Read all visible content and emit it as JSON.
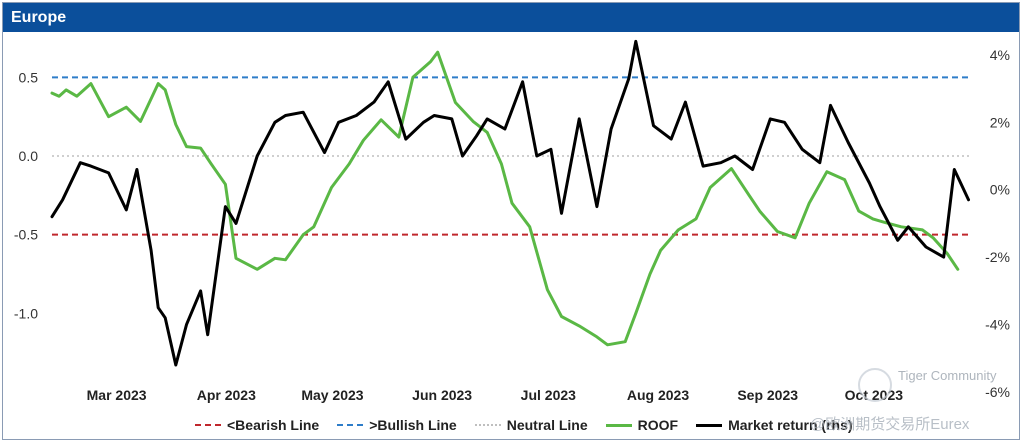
{
  "panel": {
    "title": "Europe"
  },
  "colors": {
    "header": "#0b4f9b",
    "bearish": "#c0272d",
    "bullish": "#2e7dc9",
    "neutral": "#bfbfbf",
    "roof": "#5ab845",
    "market": "#000000"
  },
  "watermark": {
    "line1": "Tiger Community",
    "line2": "@欧洲期货交易所Eurex"
  },
  "chart_data": {
    "type": "line",
    "title": "Europe",
    "x_labels": [
      "Mar 2023",
      "Apr 2023",
      "May 2023",
      "Jun 2023",
      "Jul 2023",
      "Aug 2023",
      "Sep 2023",
      "Oct 2023"
    ],
    "x_range": [
      "2023-02-13",
      "2023-10-31"
    ],
    "left_axis": {
      "ylim": [
        -1.5,
        0.75
      ],
      "ticks": [
        0.5,
        0.0,
        -0.5,
        -1.0
      ],
      "tick_labels": [
        "0.5",
        "0.0",
        "-0.5",
        "-1.0"
      ]
    },
    "right_axis": {
      "ylim": [
        -6,
        4.5
      ],
      "ticks": [
        4,
        2,
        0,
        -2,
        -4,
        -6
      ],
      "tick_labels": [
        "4%",
        "2%",
        "0%",
        "-2%",
        "-4%",
        "-6%"
      ],
      "unit": "%"
    },
    "reference_lines": [
      {
        "name": "<Bearish Line",
        "y": -0.5,
        "style": "dashed",
        "color": "#c0272d"
      },
      {
        "name": ">Bullish Line",
        "y": 0.5,
        "style": "dashed",
        "color": "#2e7dc9"
      },
      {
        "name": "Neutral Line",
        "y": 0.0,
        "style": "dotted",
        "color": "#bfbfbf"
      }
    ],
    "series": [
      {
        "name": "ROOF",
        "axis": "left",
        "color": "#5ab845",
        "x": [
          "2023-02-13",
          "2023-02-15",
          "2023-02-17",
          "2023-02-20",
          "2023-02-24",
          "2023-03-01",
          "2023-03-06",
          "2023-03-10",
          "2023-03-15",
          "2023-03-17",
          "2023-03-20",
          "2023-03-23",
          "2023-03-27",
          "2023-03-30",
          "2023-04-03",
          "2023-04-06",
          "2023-04-12",
          "2023-04-17",
          "2023-04-20",
          "2023-04-25",
          "2023-04-28",
          "2023-05-03",
          "2023-05-08",
          "2023-05-12",
          "2023-05-17",
          "2023-05-22",
          "2023-05-26",
          "2023-05-31",
          "2023-06-02",
          "2023-06-07",
          "2023-06-12",
          "2023-06-16",
          "2023-06-20",
          "2023-06-23",
          "2023-06-28",
          "2023-07-03",
          "2023-07-07",
          "2023-07-12",
          "2023-07-17",
          "2023-07-20",
          "2023-07-25",
          "2023-07-28",
          "2023-08-01",
          "2023-08-04",
          "2023-08-09",
          "2023-08-14",
          "2023-08-18",
          "2023-08-24",
          "2023-08-29",
          "2023-09-01",
          "2023-09-06",
          "2023-09-11",
          "2023-09-15",
          "2023-09-20",
          "2023-09-25",
          "2023-09-29",
          "2023-10-03",
          "2023-10-06",
          "2023-10-11",
          "2023-10-17",
          "2023-10-20",
          "2023-10-24",
          "2023-10-27"
        ],
        "values": [
          0.4,
          0.38,
          0.42,
          0.38,
          0.46,
          0.25,
          0.31,
          0.22,
          0.46,
          0.42,
          0.2,
          0.06,
          0.05,
          -0.05,
          -0.18,
          -0.65,
          -0.72,
          -0.65,
          -0.66,
          -0.5,
          -0.45,
          -0.2,
          -0.05,
          0.1,
          0.23,
          0.12,
          0.5,
          0.6,
          0.66,
          0.34,
          0.22,
          0.15,
          -0.05,
          -0.3,
          -0.45,
          -0.85,
          -1.02,
          -1.08,
          -1.15,
          -1.2,
          -1.18,
          -1.0,
          -0.75,
          -0.6,
          -0.47,
          -0.4,
          -0.2,
          -0.08,
          -0.25,
          -0.35,
          -0.48,
          -0.52,
          -0.3,
          -0.1,
          -0.15,
          -0.35,
          -0.4,
          -0.42,
          -0.45,
          -0.47,
          -0.52,
          -0.62,
          -0.72
        ]
      },
      {
        "name": "Market return (rhs)",
        "axis": "right",
        "color": "#000000",
        "unit": "%",
        "x": [
          "2023-02-13",
          "2023-02-16",
          "2023-02-21",
          "2023-02-24",
          "2023-03-01",
          "2023-03-06",
          "2023-03-09",
          "2023-03-13",
          "2023-03-15",
          "2023-03-17",
          "2023-03-20",
          "2023-03-23",
          "2023-03-27",
          "2023-03-29",
          "2023-04-03",
          "2023-04-06",
          "2023-04-12",
          "2023-04-17",
          "2023-04-20",
          "2023-04-25",
          "2023-05-01",
          "2023-05-05",
          "2023-05-10",
          "2023-05-15",
          "2023-05-19",
          "2023-05-24",
          "2023-05-29",
          "2023-06-01",
          "2023-06-06",
          "2023-06-09",
          "2023-06-13",
          "2023-06-16",
          "2023-06-21",
          "2023-06-26",
          "2023-06-30",
          "2023-07-04",
          "2023-07-07",
          "2023-07-12",
          "2023-07-17",
          "2023-07-21",
          "2023-07-26",
          "2023-07-28",
          "2023-08-02",
          "2023-08-07",
          "2023-08-11",
          "2023-08-16",
          "2023-08-21",
          "2023-08-25",
          "2023-08-30",
          "2023-09-04",
          "2023-09-08",
          "2023-09-13",
          "2023-09-18",
          "2023-09-21",
          "2023-09-26",
          "2023-10-02",
          "2023-10-05",
          "2023-10-10",
          "2023-10-13",
          "2023-10-18",
          "2023-10-23",
          "2023-10-26",
          "2023-10-30"
        ],
        "values": [
          -0.8,
          -0.3,
          0.8,
          0.7,
          0.5,
          -0.6,
          0.6,
          -1.8,
          -3.5,
          -3.8,
          -5.2,
          -4.0,
          -3.0,
          -4.3,
          -0.5,
          -1.0,
          1.0,
          2.0,
          2.2,
          2.3,
          1.1,
          2.0,
          2.2,
          2.6,
          3.2,
          1.5,
          2.0,
          2.2,
          2.1,
          1.0,
          1.6,
          2.1,
          1.8,
          3.2,
          1.0,
          1.2,
          -0.7,
          2.1,
          -0.5,
          1.8,
          3.3,
          4.4,
          1.9,
          1.5,
          2.6,
          0.7,
          0.8,
          1.0,
          0.6,
          2.1,
          2.0,
          1.2,
          0.8,
          2.5,
          1.4,
          0.2,
          -0.5,
          -1.5,
          -1.1,
          -1.7,
          -2.0,
          0.6,
          -0.3
        ]
      }
    ]
  },
  "legend": [
    {
      "label": "<Bearish Line",
      "style": "dashed",
      "color": "#c0272d"
    },
    {
      "label": ">Bullish Line",
      "style": "dashed",
      "color": "#2e7dc9"
    },
    {
      "label": "Neutral Line",
      "style": "dotted",
      "color": "#bfbfbf"
    },
    {
      "label": "ROOF",
      "style": "solid",
      "color": "#5ab845"
    },
    {
      "label": "Market return (rhs)",
      "style": "solid",
      "color": "#000000"
    }
  ]
}
